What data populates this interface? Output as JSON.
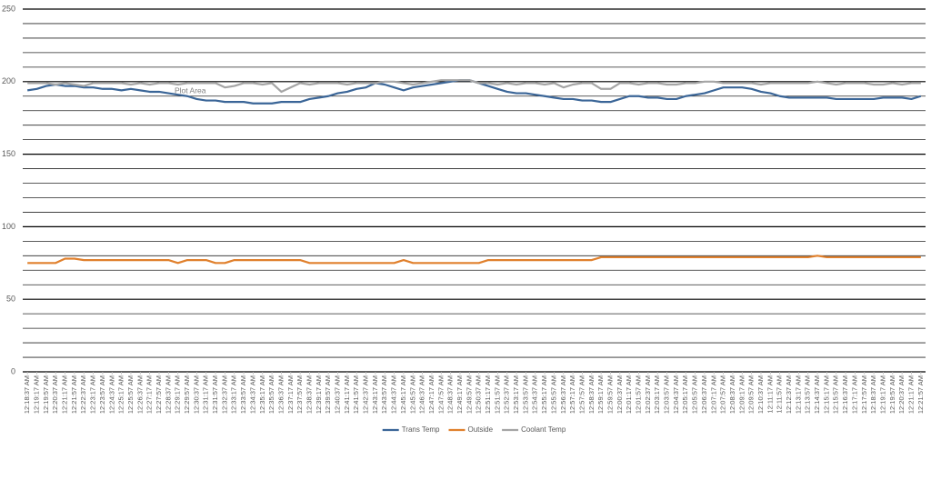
{
  "chart_data": {
    "type": "line",
    "annotation": "Plot Area",
    "categories": [
      "12:18:37 AM",
      "12:19:17 AM",
      "12:19:57 AM",
      "12:20:37 AM",
      "12:21:17 AM",
      "12:21:57 AM",
      "12:22:37 AM",
      "12:23:17 AM",
      "12:23:57 AM",
      "12:24:37 AM",
      "12:25:17 AM",
      "12:25:57 AM",
      "12:26:37 AM",
      "12:27:17 AM",
      "12:27:57 AM",
      "12:28:37 AM",
      "12:29:17 AM",
      "12:29:57 AM",
      "12:30:37 AM",
      "12:31:17 AM",
      "12:31:57 AM",
      "12:32:37 AM",
      "12:33:17 AM",
      "12:33:57 AM",
      "12:34:37 AM",
      "12:35:17 AM",
      "12:35:57 AM",
      "12:36:37 AM",
      "12:37:17 AM",
      "12:37:57 AM",
      "12:38:37 AM",
      "12:39:17 AM",
      "12:39:57 AM",
      "12:40:37 AM",
      "12:41:17 AM",
      "12:41:57 AM",
      "12:42:37 AM",
      "12:43:17 AM",
      "12:43:57 AM",
      "12:44:37 AM",
      "12:45:17 AM",
      "12:45:57 AM",
      "12:46:37 AM",
      "12:47:17 AM",
      "12:47:57 AM",
      "12:48:37 AM",
      "12:49:17 AM",
      "12:49:57 AM",
      "12:50:37 AM",
      "12:51:17 AM",
      "12:51:57 AM",
      "12:52:37 AM",
      "12:53:17 AM",
      "12:53:57 AM",
      "12:54:37 AM",
      "12:55:17 AM",
      "12:55:57 AM",
      "12:56:37 AM",
      "12:57:17 AM",
      "12:57:57 AM",
      "12:58:37 AM",
      "12:59:17 AM",
      "12:59:57 AM",
      "12:00:37 AM",
      "12:01:17 AM",
      "12:01:57 AM",
      "12:02:37 AM",
      "12:03:17 AM",
      "12:03:57 AM",
      "12:04:37 AM",
      "12:05:17 AM",
      "12:05:57 AM",
      "12:06:37 AM",
      "12:07:17 AM",
      "12:07:57 AM",
      "12:08:37 AM",
      "12:09:17 AM",
      "12:09:57 AM",
      "12:10:37 AM",
      "12:11:17 AM",
      "12:11:57 AM",
      "12:12:37 AM",
      "12:13:17 AM",
      "12:13:57 AM",
      "12:14:37 AM",
      "12:15:17 AM",
      "12:15:57 AM",
      "12:16:37 AM",
      "12:17:17 AM",
      "12:17:57 AM",
      "12:18:37 AM",
      "12:19:17 AM",
      "12:19:57 AM",
      "12:20:37 AM",
      "12:21:17 AM",
      "12:21:57 AM"
    ],
    "series": [
      {
        "name": "Trans Temp",
        "color": "#3a6597",
        "values": [
          194,
          195,
          197,
          198,
          197,
          197,
          196,
          196,
          195,
          195,
          194,
          195,
          194,
          193,
          193,
          192,
          191,
          190,
          188,
          187,
          187,
          186,
          186,
          186,
          185,
          185,
          185,
          186,
          186,
          186,
          188,
          189,
          190,
          192,
          193,
          195,
          196,
          199,
          198,
          196,
          194,
          196,
          197,
          198,
          199,
          200,
          201,
          201,
          199,
          197,
          195,
          193,
          192,
          192,
          191,
          190,
          189,
          188,
          188,
          187,
          187,
          186,
          186,
          188,
          190,
          190,
          189,
          189,
          188,
          188,
          190,
          191,
          192,
          194,
          196,
          196,
          196,
          195,
          193,
          192,
          190,
          189,
          189,
          189,
          189,
          189,
          188,
          188,
          188,
          188,
          188,
          189,
          189,
          189,
          188,
          190
        ]
      },
      {
        "name": "Outside",
        "color": "#e0802d",
        "values": [
          75,
          75,
          75,
          75,
          78,
          78,
          77,
          77,
          77,
          77,
          77,
          77,
          77,
          77,
          77,
          77,
          75,
          77,
          77,
          77,
          75,
          75,
          77,
          77,
          77,
          77,
          77,
          77,
          77,
          77,
          75,
          75,
          75,
          75,
          75,
          75,
          75,
          75,
          75,
          75,
          77,
          75,
          75,
          75,
          75,
          75,
          75,
          75,
          75,
          77,
          77,
          77,
          77,
          77,
          77,
          77,
          77,
          77,
          77,
          77,
          77,
          79,
          79,
          79,
          79,
          79,
          79,
          79,
          79,
          79,
          79,
          79,
          79,
          79,
          79,
          79,
          79,
          79,
          79,
          79,
          79,
          79,
          79,
          79,
          80,
          79,
          79,
          79,
          79,
          79,
          79,
          79,
          79,
          79,
          79,
          79
        ]
      },
      {
        "name": "Coolant Temp",
        "color": "#a5a5a5",
        "values": [
          199,
          199,
          199,
          198,
          199,
          198,
          197,
          199,
          199,
          199,
          199,
          198,
          199,
          198,
          199,
          199,
          198,
          199,
          199,
          199,
          199,
          196,
          197,
          199,
          199,
          198,
          199,
          193,
          196,
          199,
          198,
          199,
          199,
          199,
          198,
          199,
          199,
          199,
          200,
          200,
          199,
          198,
          199,
          200,
          201,
          201,
          201,
          201,
          199,
          199,
          198,
          199,
          198,
          199,
          199,
          198,
          199,
          196,
          198,
          199,
          199,
          195,
          195,
          199,
          199,
          198,
          199,
          199,
          198,
          198,
          199,
          199,
          200,
          200,
          199,
          199,
          199,
          199,
          198,
          199,
          199,
          199,
          199,
          199,
          200,
          199,
          198,
          199,
          199,
          199,
          198,
          198,
          199,
          198,
          199,
          199
        ]
      }
    ],
    "ylim": [
      0,
      250
    ],
    "yticks": [
      0,
      50,
      100,
      150,
      200,
      250
    ],
    "minor_yticks": [
      10,
      20,
      30,
      40,
      60,
      70,
      80,
      90,
      110,
      120,
      130,
      140,
      160,
      170,
      180,
      190,
      210,
      220,
      230,
      240
    ],
    "grid": true,
    "legend": "bottom"
  }
}
